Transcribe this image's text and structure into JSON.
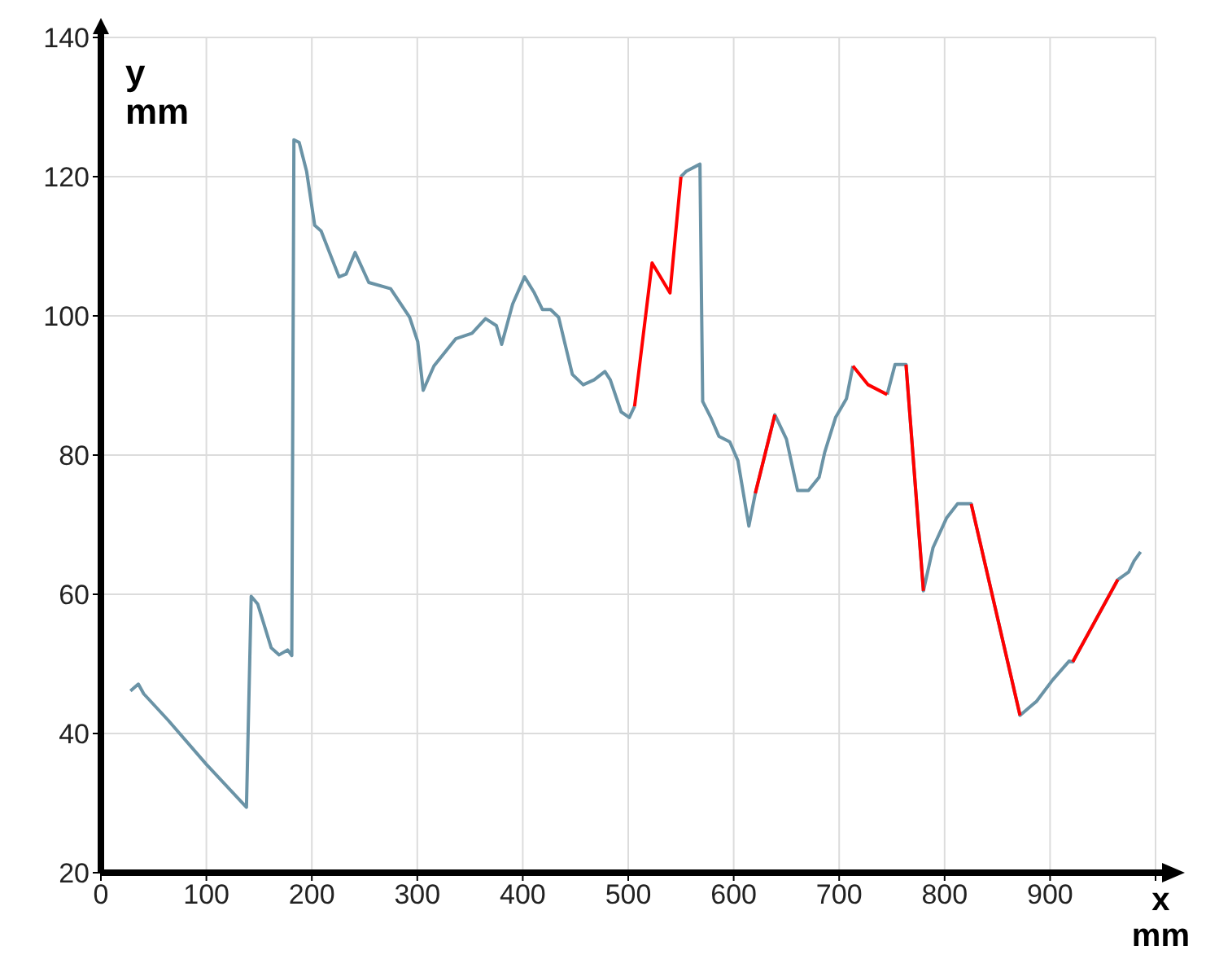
{
  "chart_data": {
    "type": "line",
    "xlabel": "x mm",
    "ylabel": "y mm",
    "x": [
      28,
      35.5,
      40.6,
      63.8,
      99.8,
      138,
      142.5,
      148.7,
      161.5,
      169,
      177,
      181,
      183,
      188,
      195,
      202.7,
      208.8,
      225.8,
      232.5,
      241,
      254,
      274.7,
      292.7,
      300.4,
      305.6,
      315.8,
      336.4,
      351.9,
      364.7,
      375,
      380,
      390.4,
      401.7,
      411,
      418.7,
      426.4,
      434,
      447,
      457.3,
      467.6,
      477.9,
      483,
      493.3,
      501,
      506,
      522.6,
      539.6,
      550,
      555.2,
      568,
      570.6,
      578.3,
      586,
      596.3,
      604,
      614.4,
      620.5,
      639,
      650,
      660.6,
      670.9,
      681,
      686.3,
      696.6,
      706.9,
      713,
      727.5,
      745.5,
      753,
      763.4,
      779.9,
      789,
      802,
      812.3,
      825.2,
      871.5,
      887,
      902.5,
      918,
      921.5,
      964.2,
      974.5,
      979.7,
      985.8
    ],
    "series": [
      {
        "color": "#6a93a6",
        "values": [
          46.1,
          47.1,
          45.7,
          41.9,
          35.6,
          29.4,
          59.7,
          58.6,
          52.3,
          51.3,
          52,
          51.2,
          125.3,
          124.9,
          120.8,
          113,
          112.2,
          105.6,
          106,
          109.1,
          104.8,
          103.9,
          99.8,
          96.3,
          89.3,
          92.8,
          96.7,
          97.5,
          99.6,
          98.6,
          95.9,
          101.7,
          105.6,
          103.3,
          100.9,
          100.9,
          99.8,
          91.6,
          90.1,
          90.8,
          92,
          90.8,
          86.2,
          85.4,
          87,
          null,
          null,
          120,
          120.8,
          121.8,
          87.7,
          85.4,
          82.7,
          81.9,
          79.2,
          69.8,
          74.5,
          85.8,
          82.3,
          74.9,
          74.9,
          76.8,
          80.4,
          85.4,
          88.1,
          92.8,
          null,
          88.7,
          93,
          93,
          60.5,
          66.7,
          71,
          73,
          73,
          42.6,
          44.6,
          47.7,
          50.4,
          50.3,
          62.1,
          63.2,
          64.8,
          66.1
        ]
      },
      {
        "color": "#ff0000",
        "values": [
          null,
          null,
          null,
          null,
          null,
          null,
          null,
          null,
          null,
          null,
          null,
          null,
          null,
          null,
          null,
          null,
          null,
          null,
          null,
          null,
          null,
          null,
          null,
          null,
          null,
          null,
          null,
          null,
          null,
          null,
          null,
          null,
          null,
          null,
          null,
          null,
          null,
          null,
          null,
          null,
          null,
          null,
          null,
          null,
          87,
          107.6,
          103.3,
          120,
          null,
          null,
          null,
          null,
          null,
          null,
          null,
          null,
          74.5,
          85.8,
          null,
          null,
          null,
          null,
          null,
          null,
          null,
          92.8,
          90.1,
          88.7,
          null,
          93,
          60.5,
          null,
          null,
          null,
          73,
          42.6,
          null,
          null,
          null,
          50.3,
          62.1,
          null,
          null,
          null
        ]
      }
    ],
    "xlim": [
      0,
      1000
    ],
    "xticks": [
      0,
      100,
      200,
      300,
      400,
      500,
      600,
      700,
      800,
      900,
      {
        "value": 1000,
        "label": null
      }
    ],
    "ylim": [
      20,
      140
    ],
    "yticks": [
      20,
      40,
      60,
      80,
      100,
      120,
      140
    ],
    "grid": true,
    "marker": "none",
    "line_style": "solid"
  }
}
